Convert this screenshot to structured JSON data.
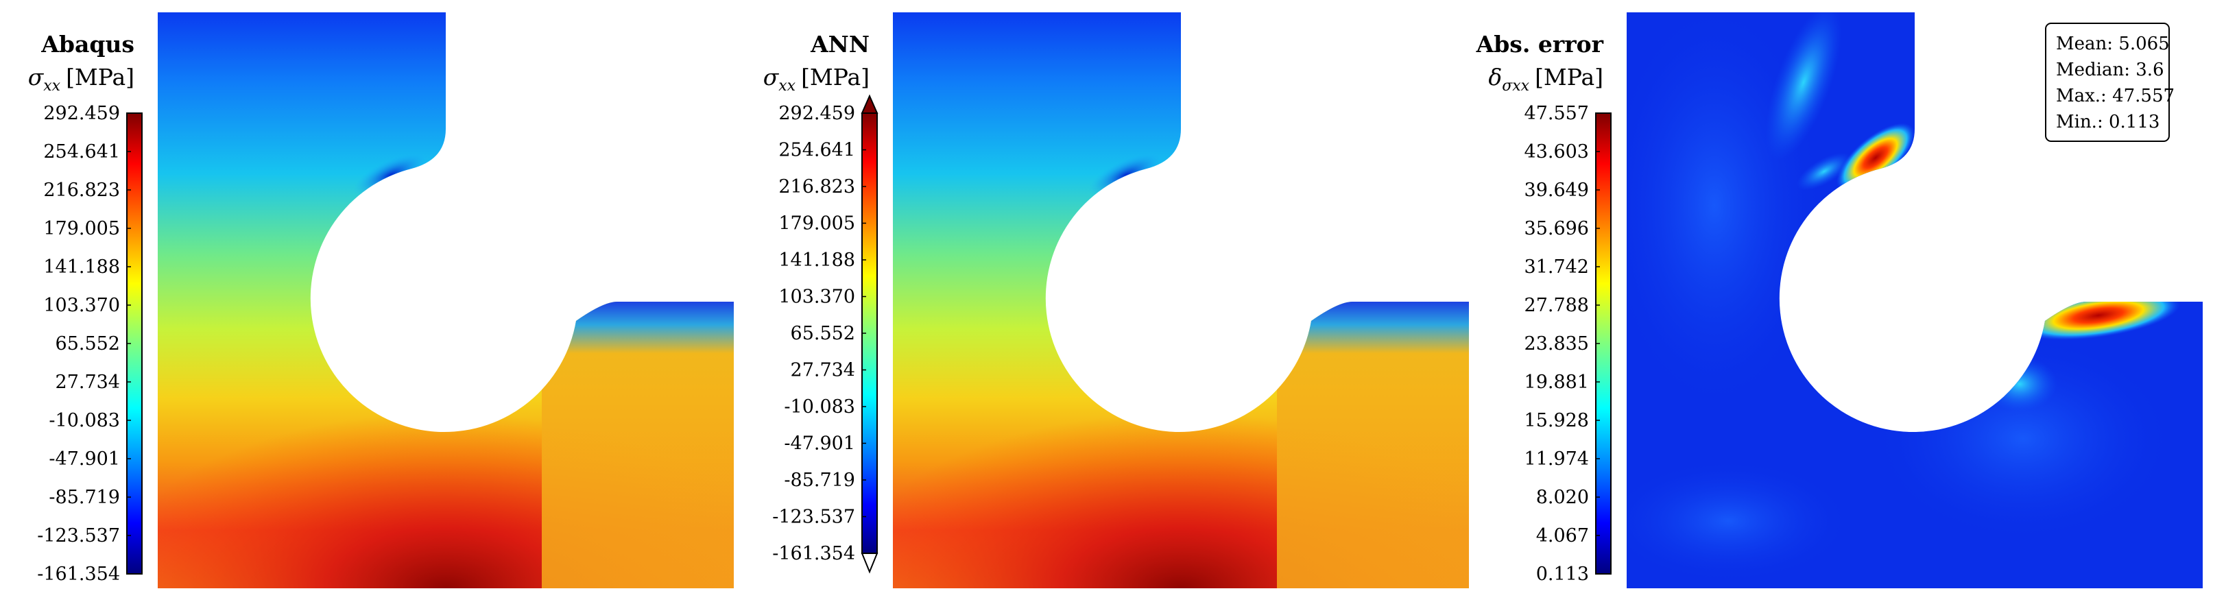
{
  "chart_data": [
    {
      "type": "heatmap",
      "title": "Abaqus",
      "quantity": "σ",
      "quantity_sub": "xx",
      "unit": "[MPa]",
      "colorbar_ticks": [
        "292.459",
        "254.641",
        "216.823",
        "179.005",
        "141.188",
        "103.370",
        "65.552",
        "27.734",
        "-10.083",
        "-47.901",
        "-85.719",
        "-123.537",
        "-161.354"
      ],
      "range": [
        -161.354,
        292.459
      ],
      "colormap": "jet",
      "extend_arrows": false
    },
    {
      "type": "heatmap",
      "title": "ANN",
      "quantity": "σ",
      "quantity_sub": "xx",
      "unit": "[MPa]",
      "colorbar_ticks": [
        "292.459",
        "254.641",
        "216.823",
        "179.005",
        "141.188",
        "103.370",
        "65.552",
        "27.734",
        "-10.083",
        "-47.901",
        "-85.719",
        "-123.537",
        "-161.354"
      ],
      "range": [
        -161.354,
        292.459
      ],
      "colormap": "jet",
      "extend_arrows": true
    },
    {
      "type": "heatmap",
      "title": "Abs. error",
      "quantity": "δ",
      "quantity_sub": "σxx",
      "unit": "[MPa]",
      "colorbar_ticks": [
        "47.557",
        "43.603",
        "39.649",
        "35.696",
        "31.742",
        "27.788",
        "23.835",
        "19.881",
        "15.928",
        "11.974",
        "8.020",
        "4.067",
        "0.113"
      ],
      "range": [
        0.113,
        47.557
      ],
      "colormap": "jet",
      "extend_arrows": false,
      "stats": [
        "Mean: 5.065",
        "Median: 3.6",
        "Max.: 47.557",
        "Min.: 0.113"
      ]
    }
  ],
  "colors": {
    "jet": [
      "#00007f",
      "#0000ff",
      "#007fff",
      "#00ffff",
      "#7fff7f",
      "#ffff00",
      "#ff7f00",
      "#ff0000",
      "#7f0000"
    ],
    "field_error_base": "#0a2fe8"
  }
}
